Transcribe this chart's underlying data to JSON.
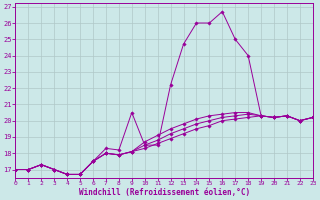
{
  "xlabel": "Windchill (Refroidissement éolien,°C)",
  "xlim": [
    0,
    23
  ],
  "ylim": [
    16.5,
    27.2
  ],
  "yticks": [
    17,
    18,
    19,
    20,
    21,
    22,
    23,
    24,
    25,
    26,
    27
  ],
  "xticks": [
    0,
    1,
    2,
    3,
    4,
    5,
    6,
    7,
    8,
    9,
    10,
    11,
    12,
    13,
    14,
    15,
    16,
    17,
    18,
    19,
    20,
    21,
    22,
    23
  ],
  "line_color": "#990099",
  "bg_color": "#cce8e8",
  "grid_color": "#b0c8c8",
  "series1": [
    [
      0,
      17.0
    ],
    [
      1,
      17.0
    ],
    [
      2,
      17.3
    ],
    [
      3,
      17.0
    ],
    [
      4,
      16.7
    ],
    [
      5,
      16.7
    ],
    [
      6,
      17.5
    ],
    [
      7,
      18.3
    ],
    [
      8,
      18.2
    ],
    [
      9,
      20.5
    ],
    [
      10,
      18.5
    ],
    [
      11,
      18.5
    ],
    [
      12,
      22.2
    ],
    [
      13,
      24.7
    ],
    [
      14,
      26.0
    ],
    [
      15,
      26.0
    ],
    [
      16,
      26.7
    ],
    [
      17,
      25.0
    ],
    [
      18,
      24.0
    ],
    [
      19,
      20.3
    ],
    [
      20,
      20.2
    ],
    [
      21,
      20.3
    ],
    [
      22,
      20.0
    ],
    [
      23,
      20.2
    ]
  ],
  "series2": [
    [
      0,
      17.0
    ],
    [
      1,
      17.0
    ],
    [
      2,
      17.3
    ],
    [
      3,
      17.0
    ],
    [
      4,
      16.7
    ],
    [
      5,
      16.7
    ],
    [
      6,
      17.5
    ],
    [
      7,
      18.0
    ],
    [
      8,
      17.9
    ],
    [
      9,
      18.1
    ],
    [
      10,
      18.3
    ],
    [
      11,
      18.6
    ],
    [
      12,
      18.9
    ],
    [
      13,
      19.2
    ],
    [
      14,
      19.5
    ],
    [
      15,
      19.7
    ],
    [
      16,
      20.0
    ],
    [
      17,
      20.1
    ],
    [
      18,
      20.2
    ],
    [
      19,
      20.3
    ],
    [
      20,
      20.2
    ],
    [
      21,
      20.3
    ],
    [
      22,
      20.0
    ],
    [
      23,
      20.2
    ]
  ],
  "series3": [
    [
      0,
      17.0
    ],
    [
      1,
      17.0
    ],
    [
      2,
      17.3
    ],
    [
      3,
      17.0
    ],
    [
      4,
      16.7
    ],
    [
      5,
      16.7
    ],
    [
      6,
      17.5
    ],
    [
      7,
      18.0
    ],
    [
      8,
      17.9
    ],
    [
      9,
      18.1
    ],
    [
      10,
      18.5
    ],
    [
      11,
      18.8
    ],
    [
      12,
      19.2
    ],
    [
      13,
      19.5
    ],
    [
      14,
      19.8
    ],
    [
      15,
      20.0
    ],
    [
      16,
      20.2
    ],
    [
      17,
      20.3
    ],
    [
      18,
      20.4
    ],
    [
      19,
      20.3
    ],
    [
      20,
      20.2
    ],
    [
      21,
      20.3
    ],
    [
      22,
      20.0
    ],
    [
      23,
      20.2
    ]
  ],
  "series4": [
    [
      0,
      17.0
    ],
    [
      1,
      17.0
    ],
    [
      2,
      17.3
    ],
    [
      3,
      17.0
    ],
    [
      4,
      16.7
    ],
    [
      5,
      16.7
    ],
    [
      6,
      17.5
    ],
    [
      7,
      18.0
    ],
    [
      8,
      17.9
    ],
    [
      9,
      18.1
    ],
    [
      10,
      18.7
    ],
    [
      11,
      19.1
    ],
    [
      12,
      19.5
    ],
    [
      13,
      19.8
    ],
    [
      14,
      20.1
    ],
    [
      15,
      20.3
    ],
    [
      16,
      20.4
    ],
    [
      17,
      20.5
    ],
    [
      18,
      20.5
    ],
    [
      19,
      20.3
    ],
    [
      20,
      20.2
    ],
    [
      21,
      20.3
    ],
    [
      22,
      20.0
    ],
    [
      23,
      20.2
    ]
  ]
}
